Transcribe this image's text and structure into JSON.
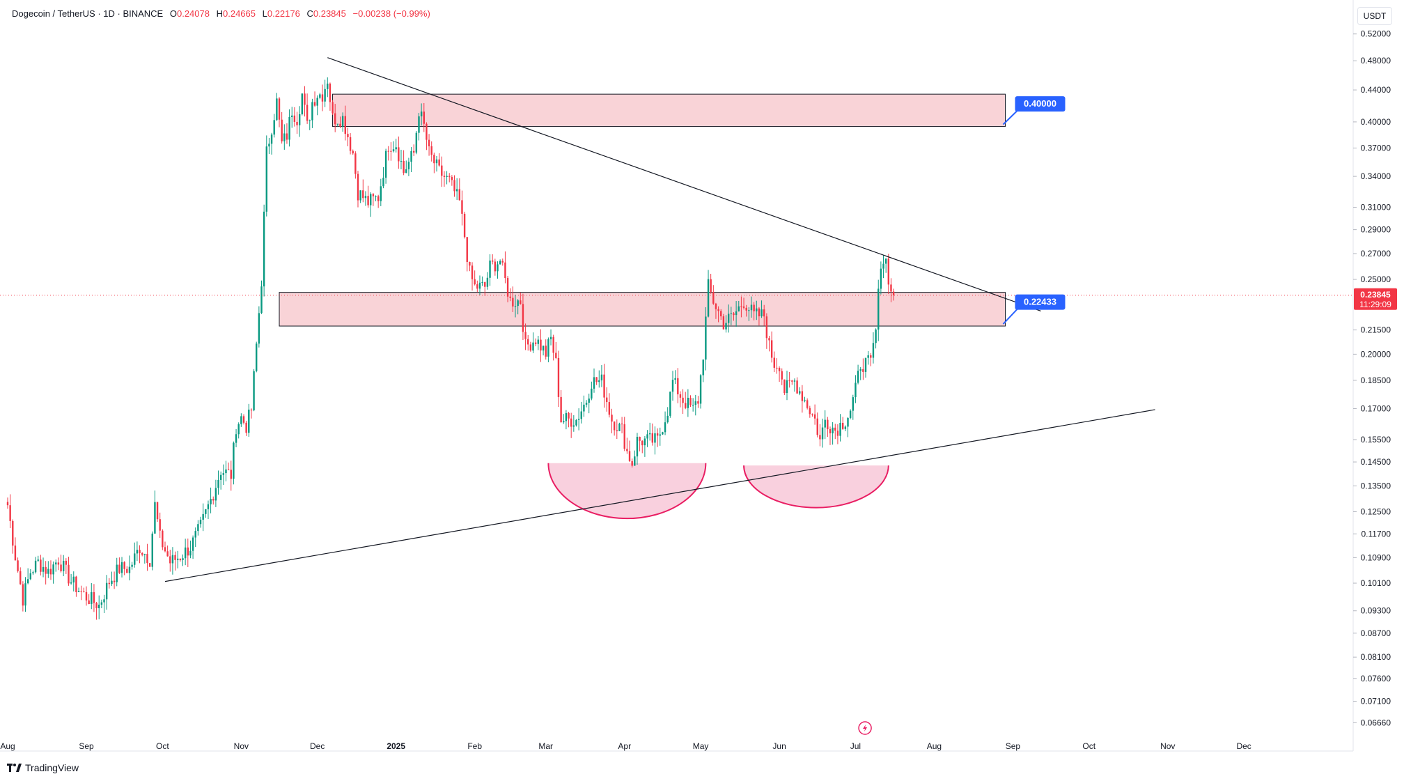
{
  "header": {
    "symbol": "Dogecoin / TetherUS · 1D · BINANCE",
    "o_label": "O",
    "o_value": "0.24078",
    "h_label": "H",
    "h_value": "0.24665",
    "l_label": "L",
    "l_value": "0.22176",
    "c_label": "C",
    "c_value": "0.23845",
    "change": "−0.00238 (−0.99%)"
  },
  "currency": "USDT",
  "brand": "TradingView",
  "colors": {
    "up": "#089981",
    "down": "#f23645",
    "zone": "#f9d3d7",
    "cup": "#f8c8d8",
    "cup_line": "#e91e63",
    "badge": "#2962ff"
  },
  "chart_data": {
    "type": "candlestick",
    "scale": "log",
    "title": "Dogecoin / TetherUS · 1D · BINANCE",
    "ylim": [
      0.0638,
      0.5429
    ],
    "price_ticks": [
      "0.52000",
      "0.48000",
      "0.44000",
      "0.40000",
      "0.37000",
      "0.34000",
      "0.31000",
      "0.29000",
      "0.27000",
      "0.25000",
      "0.21500",
      "0.20000",
      "0.18500",
      "0.17000",
      "0.15500",
      "0.14500",
      "0.13500",
      "0.12500",
      "0.11700",
      "0.10900",
      "0.10100",
      "0.09300",
      "0.08700",
      "0.08100",
      "0.07600",
      "0.07100",
      "0.06660"
    ],
    "time_ticks": [
      {
        "label": "Aug",
        "day": 0
      },
      {
        "label": "Sep",
        "day": 31
      },
      {
        "label": "Oct",
        "day": 61
      },
      {
        "label": "Nov",
        "day": 92
      },
      {
        "label": "Dec",
        "day": 122
      },
      {
        "label": "2025",
        "day": 153,
        "bold": true
      },
      {
        "label": "Feb",
        "day": 184
      },
      {
        "label": "Mar",
        "day": 212
      },
      {
        "label": "Apr",
        "day": 243
      },
      {
        "label": "May",
        "day": 273
      },
      {
        "label": "Jun",
        "day": 304
      },
      {
        "label": "Jul",
        "day": 334
      },
      {
        "label": "Aug",
        "day": 365
      },
      {
        "label": "Sep",
        "day": 396
      },
      {
        "label": "Oct",
        "day": 426
      },
      {
        "label": "Nov",
        "day": 457
      },
      {
        "label": "Dec",
        "day": 487
      }
    ],
    "close_anchors": [
      [
        0,
        0.1275
      ],
      [
        3,
        0.1095
      ],
      [
        6,
        0.0965
      ],
      [
        9,
        0.1045
      ],
      [
        12,
        0.1075
      ],
      [
        16,
        0.1045
      ],
      [
        20,
        0.1085
      ],
      [
        25,
        0.1015
      ],
      [
        30,
        0.0975
      ],
      [
        36,
        0.0945
      ],
      [
        40,
        0.1015
      ],
      [
        44,
        0.1055
      ],
      [
        48,
        0.1055
      ],
      [
        52,
        0.1125
      ],
      [
        56,
        0.1085
      ],
      [
        58,
        0.1275
      ],
      [
        60,
        0.1155
      ],
      [
        64,
        0.1075
      ],
      [
        68,
        0.1095
      ],
      [
        72,
        0.1125
      ],
      [
        76,
        0.1195
      ],
      [
        80,
        0.1295
      ],
      [
        84,
        0.1415
      ],
      [
        88,
        0.1395
      ],
      [
        90,
        0.1615
      ],
      [
        92,
        0.1655
      ],
      [
        94,
        0.1615
      ],
      [
        96,
        0.1695
      ],
      [
        98,
        0.2055
      ],
      [
        100,
        0.2495
      ],
      [
        102,
        0.3645
      ],
      [
        104,
        0.3945
      ],
      [
        106,
        0.4245
      ],
      [
        108,
        0.3745
      ],
      [
        110,
        0.3845
      ],
      [
        112,
        0.4145
      ],
      [
        114,
        0.4045
      ],
      [
        116,
        0.4345
      ],
      [
        118,
        0.3945
      ],
      [
        120,
        0.4245
      ],
      [
        122,
        0.4345
      ],
      [
        124,
        0.4345
      ],
      [
        126,
        0.4545
      ],
      [
        128,
        0.4045
      ],
      [
        132,
        0.4045
      ],
      [
        136,
        0.3645
      ],
      [
        138,
        0.3245
      ],
      [
        142,
        0.3145
      ],
      [
        146,
        0.3195
      ],
      [
        150,
        0.3745
      ],
      [
        153,
        0.3745
      ],
      [
        156,
        0.3445
      ],
      [
        160,
        0.3645
      ],
      [
        162,
        0.4145
      ],
      [
        164,
        0.3945
      ],
      [
        166,
        0.3645
      ],
      [
        170,
        0.3445
      ],
      [
        174,
        0.3345
      ],
      [
        176,
        0.3245
      ],
      [
        178,
        0.3145
      ],
      [
        180,
        0.2845
      ],
      [
        182,
        0.2545
      ],
      [
        184,
        0.2445
      ],
      [
        188,
        0.2445
      ],
      [
        190,
        0.2595
      ],
      [
        194,
        0.2645
      ],
      [
        198,
        0.2345
      ],
      [
        202,
        0.2345
      ],
      [
        204,
        0.2045
      ],
      [
        208,
        0.2095
      ],
      [
        212,
        0.2005
      ],
      [
        214,
        0.2095
      ],
      [
        216,
        0.1945
      ],
      [
        218,
        0.1645
      ],
      [
        220,
        0.1645
      ],
      [
        224,
        0.1645
      ],
      [
        228,
        0.1745
      ],
      [
        230,
        0.1845
      ],
      [
        234,
        0.1845
      ],
      [
        238,
        0.1645
      ],
      [
        242,
        0.1595
      ],
      [
        244,
        0.1495
      ],
      [
        246,
        0.1445
      ],
      [
        248,
        0.1545
      ],
      [
        252,
        0.1545
      ],
      [
        256,
        0.1545
      ],
      [
        260,
        0.1695
      ],
      [
        262,
        0.1845
      ],
      [
        266,
        0.1745
      ],
      [
        270,
        0.1695
      ],
      [
        272,
        0.1745
      ],
      [
        274,
        0.2005
      ],
      [
        276,
        0.2445
      ],
      [
        278,
        0.2345
      ],
      [
        282,
        0.2195
      ],
      [
        286,
        0.2245
      ],
      [
        290,
        0.2345
      ],
      [
        294,
        0.2245
      ],
      [
        298,
        0.2245
      ],
      [
        300,
        0.2045
      ],
      [
        302,
        0.1945
      ],
      [
        304,
        0.1945
      ],
      [
        306,
        0.1795
      ],
      [
        310,
        0.1845
      ],
      [
        314,
        0.1745
      ],
      [
        318,
        0.1645
      ],
      [
        320,
        0.1545
      ],
      [
        322,
        0.1645
      ],
      [
        326,
        0.1595
      ],
      [
        330,
        0.1645
      ],
      [
        332,
        0.1695
      ],
      [
        334,
        0.1795
      ],
      [
        336,
        0.1945
      ],
      [
        338,
        0.1945
      ],
      [
        340,
        0.1945
      ],
      [
        342,
        0.2145
      ],
      [
        344,
        0.2645
      ],
      [
        346,
        0.2645
      ],
      [
        348,
        0.2395
      ],
      [
        349,
        0.2385
      ]
    ],
    "lines": [
      {
        "name": "descending-trendline",
        "from": {
          "day": 126,
          "price": 0.4845
        },
        "to": {
          "day": 407,
          "price": 0.2275
        }
      },
      {
        "name": "ascending-trendline",
        "from": {
          "day": 62,
          "price": 0.1015
        },
        "to": {
          "day": 452,
          "price": 0.1695
        }
      }
    ],
    "zones": [
      {
        "name": "upper-resistance-zone",
        "from_day": 128,
        "to_day": 393,
        "top": 0.4345,
        "bottom": 0.3945,
        "label": "0.40000"
      },
      {
        "name": "mid-resistance-zone",
        "from_day": 107,
        "to_day": 393,
        "top": 0.2405,
        "bottom": 0.2175,
        "label": "0.22433"
      }
    ],
    "cups": [
      {
        "name": "cup-1",
        "from_day": 213,
        "to_day": 275,
        "rim": 0.1445,
        "bottom": 0.1225
      },
      {
        "name": "cup-2",
        "from_day": 290,
        "to_day": 347,
        "rim": 0.1435,
        "bottom": 0.1265
      }
    ],
    "last_price": {
      "value": "0.23845",
      "countdown": "11:29:09",
      "price": 0.23845
    }
  }
}
